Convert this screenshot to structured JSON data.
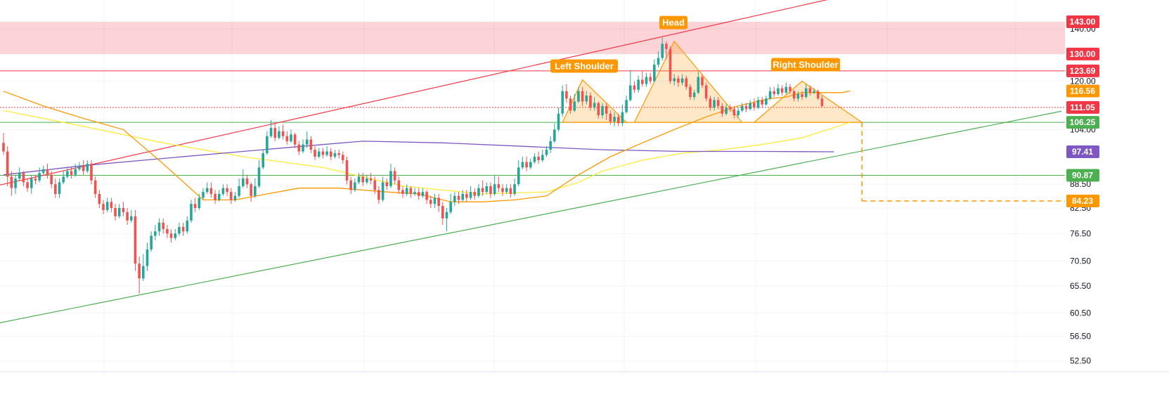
{
  "chart_data": {
    "type": "candlestick",
    "y_scale": "log",
    "ylim": [
      51.5,
      150
    ],
    "y_ticks": [
      "140.00",
      "120.00",
      "104.00",
      "88.50",
      "82.50",
      "76.50",
      "70.50",
      "65.50",
      "60.50",
      "56.50",
      "52.50"
    ],
    "grid": true,
    "colors": {
      "up": "#26a69a",
      "down": "#ef5350",
      "resistance": "#f23645",
      "support": "#4caf50",
      "pattern": "#ff9800",
      "ma_fast": "#ff9800",
      "ma_slow": "#ffeb3b",
      "ma_long": "#7e57c2"
    },
    "price_tags": [
      {
        "label": "143.00",
        "value": 143.0,
        "color": "#f23645"
      },
      {
        "label": "130.00",
        "value": 130.0,
        "color": "#f23645"
      },
      {
        "label": "123.69",
        "value": 123.69,
        "color": "#f23645"
      },
      {
        "label": "116.56",
        "value": 116.56,
        "color": "#ff9800"
      },
      {
        "label": "111.05",
        "value": 111.05,
        "color": "#f23645"
      },
      {
        "label": "106.25",
        "value": 106.25,
        "color": "#4caf50"
      },
      {
        "label": "97.41",
        "value": 97.41,
        "color": "#7e57c2"
      },
      {
        "label": "90.87",
        "value": 90.87,
        "color": "#4caf50"
      },
      {
        "label": "84.23",
        "value": 84.23,
        "color": "#ff9800"
      }
    ],
    "resistance_zone": [
      130.0,
      143.0
    ],
    "horizontal_levels": [
      {
        "value": 123.69,
        "color": "#f23645",
        "style": "solid"
      },
      {
        "value": 111.05,
        "color": "#f23645",
        "style": "dotted"
      },
      {
        "value": 106.25,
        "color": "#4caf50",
        "style": "solid"
      },
      {
        "value": 90.87,
        "color": "#4caf50",
        "style": "solid"
      }
    ],
    "pattern_labels": [
      {
        "text": "Left Shoulder",
        "price": 120.5
      },
      {
        "text": "Head",
        "price": 137.0
      },
      {
        "text": "Right Shoulder",
        "price": 121.0
      }
    ],
    "target": {
      "price": 84.23
    },
    "candles": [
      [
        100,
        97.5,
        103,
        96.5
      ],
      [
        97.5,
        90.5,
        99,
        88
      ],
      [
        90.5,
        87.5,
        92,
        85.5
      ],
      [
        87.5,
        90,
        91,
        86
      ],
      [
        90,
        91.5,
        93,
        89.5
      ],
      [
        91.5,
        89,
        92,
        88
      ],
      [
        89,
        87.5,
        90,
        86.5
      ],
      [
        87.5,
        90,
        91,
        86
      ],
      [
        90,
        89.5,
        91,
        88.5
      ],
      [
        89.5,
        91.5,
        93,
        89
      ],
      [
        91.5,
        92.5,
        93.5,
        91
      ],
      [
        92.5,
        91,
        94,
        90
      ],
      [
        91,
        88.5,
        92,
        87.5
      ],
      [
        88.5,
        86,
        90,
        85
      ],
      [
        86,
        89,
        90,
        85
      ],
      [
        89,
        90.5,
        92,
        88.5
      ],
      [
        90.5,
        92,
        93,
        90
      ],
      [
        92,
        91,
        93,
        90
      ],
      [
        91,
        92.5,
        94,
        90.5
      ],
      [
        92.5,
        93.5,
        94.5,
        92
      ],
      [
        93.5,
        92,
        95,
        91
      ],
      [
        92,
        94,
        95,
        91.5
      ],
      [
        94,
        89.5,
        95,
        88.5
      ],
      [
        89.5,
        86,
        90.5,
        85
      ],
      [
        86,
        83.5,
        87,
        82.5
      ],
      [
        83.5,
        82,
        84.5,
        81
      ],
      [
        82,
        84,
        85,
        81.5
      ],
      [
        84,
        82.5,
        85,
        81.5
      ],
      [
        82.5,
        80.5,
        83.5,
        79.5
      ],
      [
        80.5,
        82.5,
        83.5,
        80
      ],
      [
        82.5,
        81.5,
        84,
        80.5
      ],
      [
        81.5,
        79.5,
        82.5,
        78.5
      ],
      [
        79.5,
        80.5,
        82,
        79
      ],
      [
        80.5,
        70,
        82,
        68.5
      ],
      [
        70,
        67,
        71.5,
        64
      ],
      [
        67,
        69.5,
        72,
        66.5
      ],
      [
        69.5,
        73,
        74.5,
        68.5
      ],
      [
        73,
        76,
        77,
        72.5
      ],
      [
        76,
        77,
        78.5,
        75
      ],
      [
        77,
        79,
        80,
        76
      ],
      [
        79,
        77.5,
        80,
        76.5
      ],
      [
        77.5,
        76.5,
        78.5,
        75.5
      ],
      [
        76.5,
        75.5,
        77.5,
        74.5
      ],
      [
        75.5,
        76.5,
        77.5,
        75
      ],
      [
        76.5,
        78,
        79,
        76
      ],
      [
        78,
        77,
        79,
        76
      ],
      [
        77,
        79.5,
        80.5,
        76.5
      ],
      [
        79.5,
        83.5,
        84.5,
        79
      ],
      [
        83.5,
        82.5,
        85,
        81.5
      ],
      [
        82.5,
        85,
        86,
        82
      ],
      [
        85,
        86.5,
        87.5,
        84.5
      ],
      [
        86.5,
        87.5,
        89,
        86
      ],
      [
        87.5,
        86,
        89,
        85
      ],
      [
        86,
        84.5,
        87,
        83.5
      ],
      [
        84.5,
        86,
        87,
        84
      ],
      [
        86,
        87.5,
        88.5,
        85.5
      ],
      [
        87.5,
        86.5,
        88.5,
        85.5
      ],
      [
        86.5,
        84.5,
        87.5,
        83.5
      ],
      [
        84.5,
        85.5,
        86.5,
        84
      ],
      [
        85.5,
        88,
        90,
        85
      ],
      [
        88,
        90,
        92.5,
        87.5
      ],
      [
        90,
        88.5,
        91,
        87.5
      ],
      [
        88.5,
        85.5,
        89,
        84
      ],
      [
        85.5,
        88,
        90,
        85
      ],
      [
        88,
        93,
        95,
        87.5
      ],
      [
        93,
        97,
        98,
        92.5
      ],
      [
        97,
        102,
        103.5,
        96.5
      ],
      [
        102,
        104.5,
        107,
        101.5
      ],
      [
        104.5,
        101.5,
        106,
        100.5
      ],
      [
        101.5,
        103.5,
        105,
        101
      ],
      [
        103.5,
        102,
        105.5,
        101
      ],
      [
        102,
        100.5,
        103.5,
        99.5
      ],
      [
        100.5,
        102.5,
        104,
        100
      ],
      [
        102.5,
        99.5,
        103,
        98.5
      ],
      [
        99.5,
        97.5,
        100.5,
        96.5
      ],
      [
        97.5,
        99.5,
        101,
        97
      ],
      [
        99.5,
        101,
        103.5,
        98.5
      ],
      [
        101,
        98,
        102,
        97
      ],
      [
        98,
        96,
        99,
        95
      ],
      [
        96,
        97.5,
        98.5,
        95.5
      ],
      [
        97.5,
        96.5,
        98.5,
        95.5
      ],
      [
        96.5,
        97.5,
        99,
        96
      ],
      [
        97.5,
        96,
        98.5,
        95
      ],
      [
        96,
        97,
        98,
        95.5
      ],
      [
        97,
        96.5,
        98,
        95.5
      ],
      [
        96.5,
        95,
        97.5,
        94
      ],
      [
        95,
        89.5,
        96,
        88.5
      ],
      [
        89.5,
        87,
        90.5,
        86
      ],
      [
        87,
        89,
        90,
        86.5
      ],
      [
        89,
        90.5,
        91.5,
        88.5
      ],
      [
        90.5,
        89,
        91.5,
        88
      ],
      [
        89,
        90,
        91,
        88.5
      ],
      [
        90,
        89.5,
        91.5,
        88.5
      ],
      [
        89.5,
        87,
        90.5,
        86
      ],
      [
        87,
        84.5,
        88,
        83.5
      ],
      [
        84.5,
        89,
        90.5,
        84
      ],
      [
        89,
        88,
        90,
        87
      ],
      [
        88,
        92,
        94,
        87.5
      ],
      [
        92,
        89.5,
        93,
        88.5
      ],
      [
        89.5,
        87,
        90.5,
        86
      ],
      [
        87,
        86,
        88,
        85
      ],
      [
        86,
        87.5,
        88.5,
        85.5
      ],
      [
        87.5,
        86,
        88,
        85
      ],
      [
        86,
        86.5,
        87.5,
        85.5
      ],
      [
        86.5,
        85.5,
        87.5,
        84.5
      ],
      [
        85.5,
        86.5,
        87.5,
        85
      ],
      [
        86.5,
        84.5,
        87,
        83.5
      ],
      [
        84.5,
        83.5,
        85.5,
        82.5
      ],
      [
        83.5,
        85,
        86,
        82.5
      ],
      [
        85,
        83,
        86,
        81.5
      ],
      [
        83,
        80,
        84,
        78.5
      ],
      [
        80,
        81.5,
        82.5,
        77
      ],
      [
        81.5,
        84,
        86,
        81
      ],
      [
        84,
        85.5,
        86.5,
        83
      ],
      [
        85.5,
        84.5,
        86.5,
        83.5
      ],
      [
        84.5,
        86,
        87,
        84
      ],
      [
        86,
        85,
        87,
        84
      ],
      [
        85,
        86.5,
        88,
        84.5
      ],
      [
        86.5,
        85.5,
        87.5,
        84.5
      ],
      [
        85.5,
        87.5,
        88.5,
        85
      ],
      [
        87.5,
        86.5,
        89.5,
        85.5
      ],
      [
        86.5,
        88,
        89,
        86
      ],
      [
        88,
        86,
        89,
        85
      ],
      [
        86,
        88.5,
        91,
        85.5
      ],
      [
        88.5,
        87.5,
        90.5,
        86.5
      ],
      [
        87.5,
        86.5,
        88.5,
        85.5
      ],
      [
        86.5,
        87.5,
        88.5,
        86
      ],
      [
        87.5,
        86,
        88.5,
        85
      ],
      [
        86,
        88.5,
        90,
        85.5
      ],
      [
        88.5,
        93,
        95,
        88
      ],
      [
        93,
        94.5,
        96,
        92.5
      ],
      [
        94.5,
        93,
        96,
        92
      ],
      [
        93,
        94.5,
        95.5,
        92.5
      ],
      [
        94.5,
        96,
        97,
        94
      ],
      [
        96,
        95,
        97.5,
        94
      ],
      [
        95,
        96.5,
        98,
        94.5
      ],
      [
        96.5,
        98,
        99,
        96
      ],
      [
        98,
        100.5,
        102,
        97
      ],
      [
        100.5,
        104,
        106,
        100
      ],
      [
        104,
        109,
        111,
        103.5
      ],
      [
        109,
        116.5,
        118.5,
        108
      ],
      [
        116.5,
        114,
        119,
        112.5
      ],
      [
        114,
        110,
        115,
        109
      ],
      [
        110,
        113,
        115.5,
        109.5
      ],
      [
        113,
        116.5,
        118,
        112.5
      ],
      [
        116.5,
        113,
        118,
        111.5
      ],
      [
        113,
        115,
        116.5,
        112
      ],
      [
        115,
        111,
        116,
        110
      ],
      [
        111,
        112.5,
        114.5,
        110
      ],
      [
        112.5,
        108.5,
        113,
        107.5
      ],
      [
        108.5,
        111.5,
        112.5,
        107.5
      ],
      [
        111.5,
        109,
        112.5,
        107
      ],
      [
        109,
        106.5,
        110,
        105.5
      ],
      [
        106.5,
        108,
        109.5,
        105
      ],
      [
        108,
        106,
        109,
        105
      ],
      [
        106,
        109.5,
        112,
        105
      ],
      [
        109.5,
        113.5,
        115,
        109
      ],
      [
        113.5,
        118.5,
        124,
        113
      ],
      [
        118.5,
        117,
        120,
        116
      ],
      [
        117,
        120.5,
        122,
        116
      ],
      [
        120.5,
        119,
        123.5,
        118
      ],
      [
        119,
        121.5,
        123,
        118
      ],
      [
        121.5,
        120,
        123,
        119
      ],
      [
        120,
        126,
        128,
        119.5
      ],
      [
        126,
        128.5,
        131,
        125
      ],
      [
        128.5,
        134,
        136.5,
        127.5
      ],
      [
        134,
        132,
        135,
        128
      ],
      [
        132,
        120,
        133,
        119
      ],
      [
        120,
        121,
        122.5,
        118.5
      ],
      [
        121,
        119.5,
        122,
        118
      ],
      [
        119.5,
        121,
        122.5,
        118.5
      ],
      [
        121,
        118,
        122,
        117
      ],
      [
        118,
        114.5,
        119,
        113.5
      ],
      [
        114.5,
        116,
        117,
        113.5
      ],
      [
        116,
        121.5,
        123.5,
        115.5
      ],
      [
        121.5,
        118.5,
        122.5,
        117.5
      ],
      [
        118.5,
        114,
        119.5,
        113
      ],
      [
        114,
        111,
        115,
        110
      ],
      [
        111,
        113.5,
        114.5,
        110
      ],
      [
        113.5,
        111.5,
        114.5,
        110.5
      ],
      [
        111.5,
        109,
        112.5,
        108
      ],
      [
        109,
        111,
        112,
        108.5
      ],
      [
        111,
        110.5,
        112,
        109.5
      ],
      [
        110.5,
        108.5,
        111.5,
        107.5
      ],
      [
        108.5,
        110,
        111,
        107.5
      ],
      [
        110,
        111.5,
        112.5,
        109.5
      ],
      [
        111.5,
        110.5,
        112.5,
        109.5
      ],
      [
        110.5,
        112.5,
        113.5,
        110
      ],
      [
        112.5,
        111,
        114,
        110
      ],
      [
        111,
        113.5,
        114.5,
        110.5
      ],
      [
        113.5,
        112,
        114.5,
        111
      ],
      [
        112,
        114,
        115,
        111.5
      ],
      [
        114,
        116.5,
        118,
        113.5
      ],
      [
        116.5,
        115.5,
        118,
        114.5
      ],
      [
        115.5,
        117.5,
        119,
        115
      ],
      [
        117.5,
        116,
        118.5,
        115
      ],
      [
        116,
        118,
        119.5,
        115.5
      ],
      [
        118,
        116.5,
        119,
        115.5
      ],
      [
        116.5,
        114,
        117,
        113
      ],
      [
        114,
        115.5,
        116.5,
        113
      ],
      [
        115.5,
        114.5,
        116.5,
        113.5
      ],
      [
        114.5,
        117.5,
        119,
        114
      ],
      [
        117.5,
        116,
        118.5,
        115
      ],
      [
        116,
        116.5,
        117.5,
        115.5
      ],
      [
        116.5,
        114,
        117,
        113.5
      ],
      [
        114,
        111.5,
        115,
        111
      ]
    ],
    "ma_fast": [
      [
        0,
        116.5
      ],
      [
        10,
        111.5
      ],
      [
        20,
        107.5
      ],
      [
        30,
        104
      ],
      [
        40,
        94
      ],
      [
        50,
        84.5
      ],
      [
        58,
        84.5
      ],
      [
        66,
        86
      ],
      [
        74,
        87.5
      ],
      [
        84,
        87.5
      ],
      [
        96,
        86.5
      ],
      [
        104,
        86
      ],
      [
        112,
        84
      ],
      [
        120,
        84
      ],
      [
        128,
        84.5
      ],
      [
        136,
        85.5
      ],
      [
        144,
        91
      ],
      [
        152,
        96
      ],
      [
        160,
        100
      ],
      [
        168,
        104
      ],
      [
        176,
        108
      ],
      [
        184,
        111.5
      ],
      [
        192,
        114
      ],
      [
        196,
        114.5
      ],
      [
        200,
        116
      ],
      [
        210,
        116
      ],
      [
        212,
        116.56
      ]
    ],
    "ma_slow": [
      [
        0,
        110
      ],
      [
        20,
        105
      ],
      [
        40,
        100
      ],
      [
        60,
        96
      ],
      [
        80,
        93
      ],
      [
        100,
        88
      ],
      [
        120,
        86
      ],
      [
        136,
        86.5
      ],
      [
        144,
        89
      ],
      [
        150,
        92
      ],
      [
        160,
        95
      ],
      [
        170,
        97
      ],
      [
        180,
        98
      ],
      [
        190,
        99.5
      ],
      [
        200,
        101.5
      ],
      [
        212,
        106.25
      ]
    ],
    "ma_long": [
      [
        0,
        91
      ],
      [
        20,
        93.5
      ],
      [
        40,
        95.5
      ],
      [
        60,
        97.5
      ],
      [
        80,
        99.5
      ],
      [
        90,
        100.5
      ],
      [
        110,
        100
      ],
      [
        130,
        99
      ],
      [
        150,
        98
      ],
      [
        170,
        97.5
      ],
      [
        190,
        97.5
      ],
      [
        208,
        97.41
      ]
    ]
  }
}
